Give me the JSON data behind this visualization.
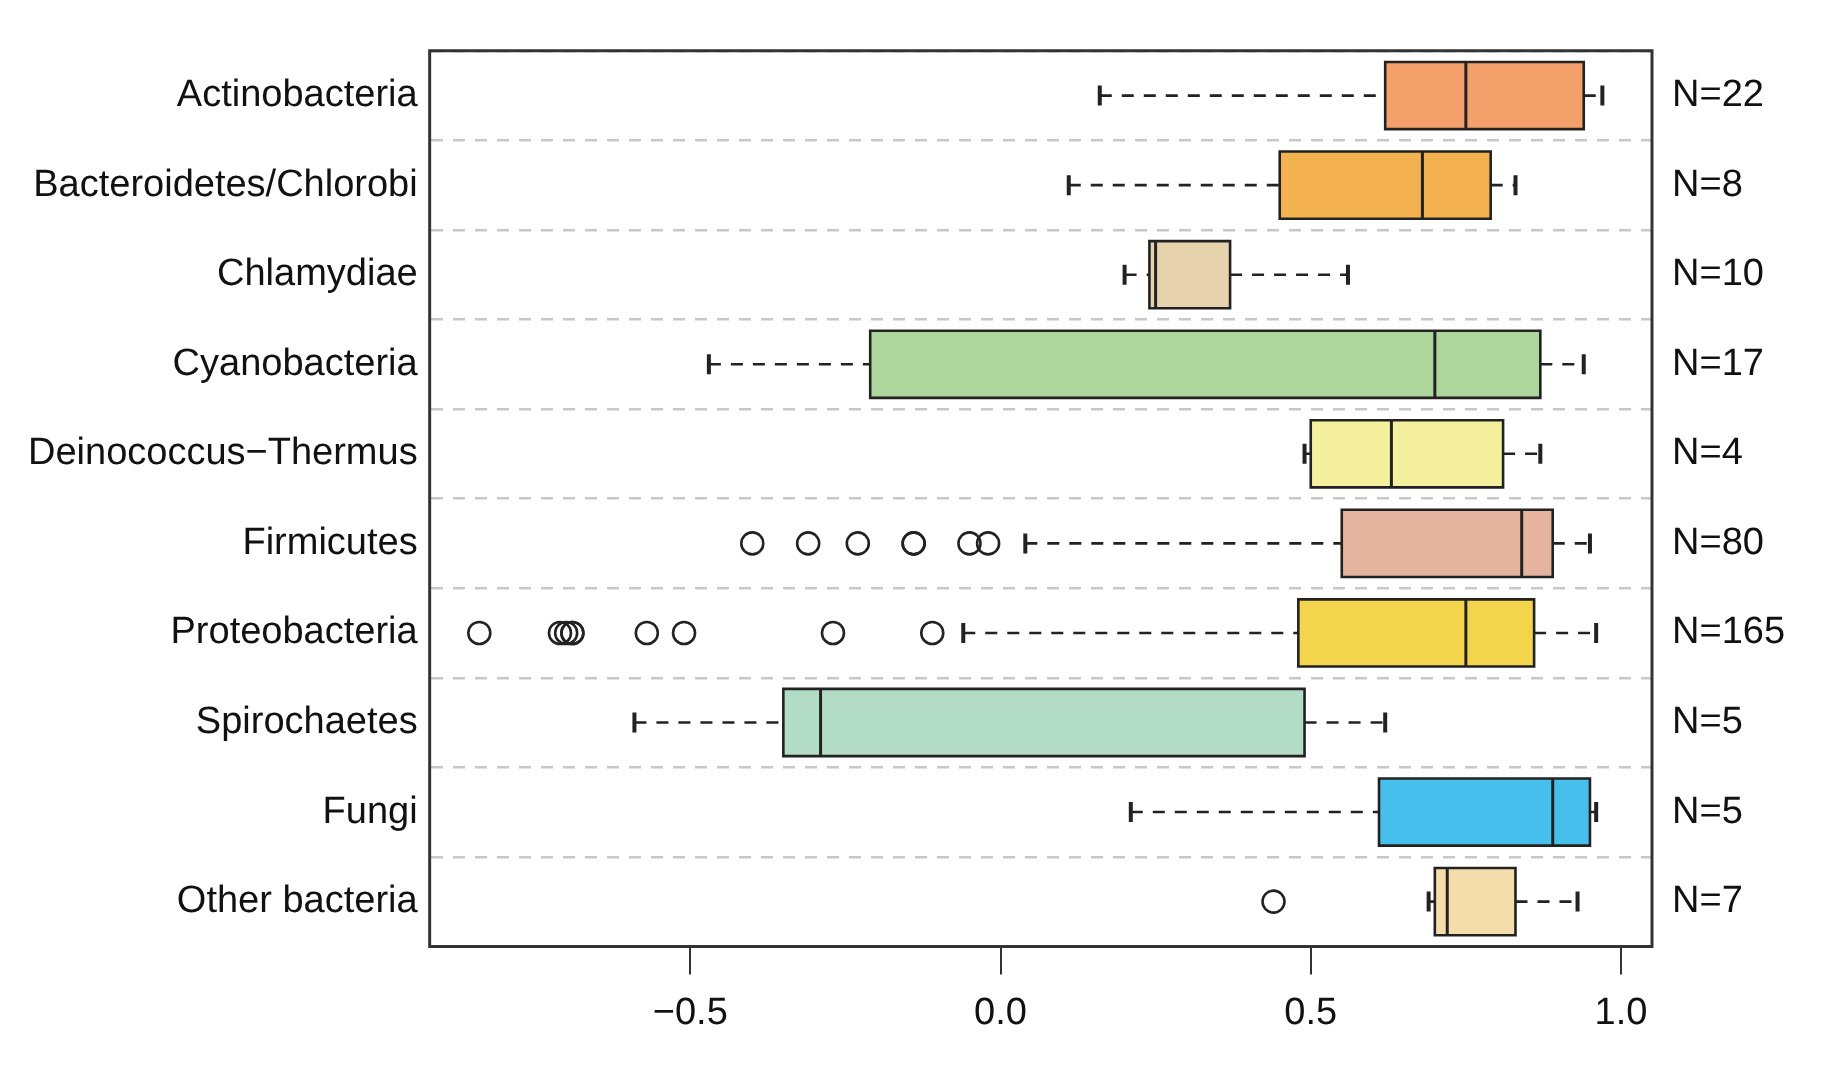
{
  "chart_data": {
    "type": "box",
    "orientation": "horizontal",
    "categories": [
      "Actinobacteria",
      "Bacteroidetes/Chlorobi",
      "Chlamydiae",
      "Cyanobacteria",
      "Deinococcus−Thermus",
      "Firmicutes",
      "Proteobacteria",
      "Spirochaetes",
      "Fungi",
      "Other bacteria"
    ],
    "boxes": [
      {
        "low": 0.16,
        "q1": 0.62,
        "median": 0.75,
        "q3": 0.94,
        "high": 0.97
      },
      {
        "low": 0.11,
        "q1": 0.45,
        "median": 0.68,
        "q3": 0.79,
        "high": 0.83
      },
      {
        "low": 0.2,
        "q1": 0.24,
        "median": 0.25,
        "q3": 0.37,
        "high": 0.56
      },
      {
        "low": -0.47,
        "q1": -0.21,
        "median": 0.7,
        "q3": 0.87,
        "high": 0.94
      },
      {
        "low": 0.49,
        "q1": 0.5,
        "median": 0.63,
        "q3": 0.81,
        "high": 0.87
      },
      {
        "low": 0.04,
        "q1": 0.55,
        "median": 0.84,
        "q3": 0.89,
        "high": 0.95,
        "outliers": [
          -0.4,
          -0.31,
          -0.23,
          -0.14,
          -0.14,
          -0.05,
          -0.02
        ]
      },
      {
        "low": -0.06,
        "q1": 0.48,
        "median": 0.75,
        "q3": 0.86,
        "high": 0.96,
        "outliers": [
          -0.84,
          -0.71,
          -0.7,
          -0.69,
          -0.69,
          -0.57,
          -0.51,
          -0.27,
          -0.11
        ]
      },
      {
        "low": -0.59,
        "q1": -0.35,
        "median": -0.29,
        "q3": 0.49,
        "high": 0.62
      },
      {
        "low": 0.21,
        "q1": 0.61,
        "median": 0.89,
        "q3": 0.95,
        "high": 0.96
      },
      {
        "low": 0.69,
        "q1": 0.7,
        "median": 0.72,
        "q3": 0.83,
        "high": 0.93,
        "outliers": [
          0.44
        ]
      }
    ],
    "colors": [
      "#f4a06b",
      "#f3b150",
      "#e6d3ad",
      "#acd69c",
      "#f5f09e",
      "#e5b49e",
      "#f3d44d",
      "#b2dcc6",
      "#47bfec",
      "#f5dcab"
    ],
    "xlim": [
      -0.92,
      1.05
    ],
    "xticks": [
      {
        "value": -0.5,
        "label": "−0.5"
      },
      {
        "value": 0.0,
        "label": "0.0"
      },
      {
        "value": 0.5,
        "label": "0.5"
      },
      {
        "value": 1.0,
        "label": "1.0"
      }
    ],
    "annotations": [
      "N=22",
      "N=8",
      "N=10",
      "N=17",
      "N=4",
      "N=80",
      "N=165",
      "N=5",
      "N=5",
      "N=7"
    ],
    "grid": "y",
    "marker": "circle",
    "legend": false
  }
}
